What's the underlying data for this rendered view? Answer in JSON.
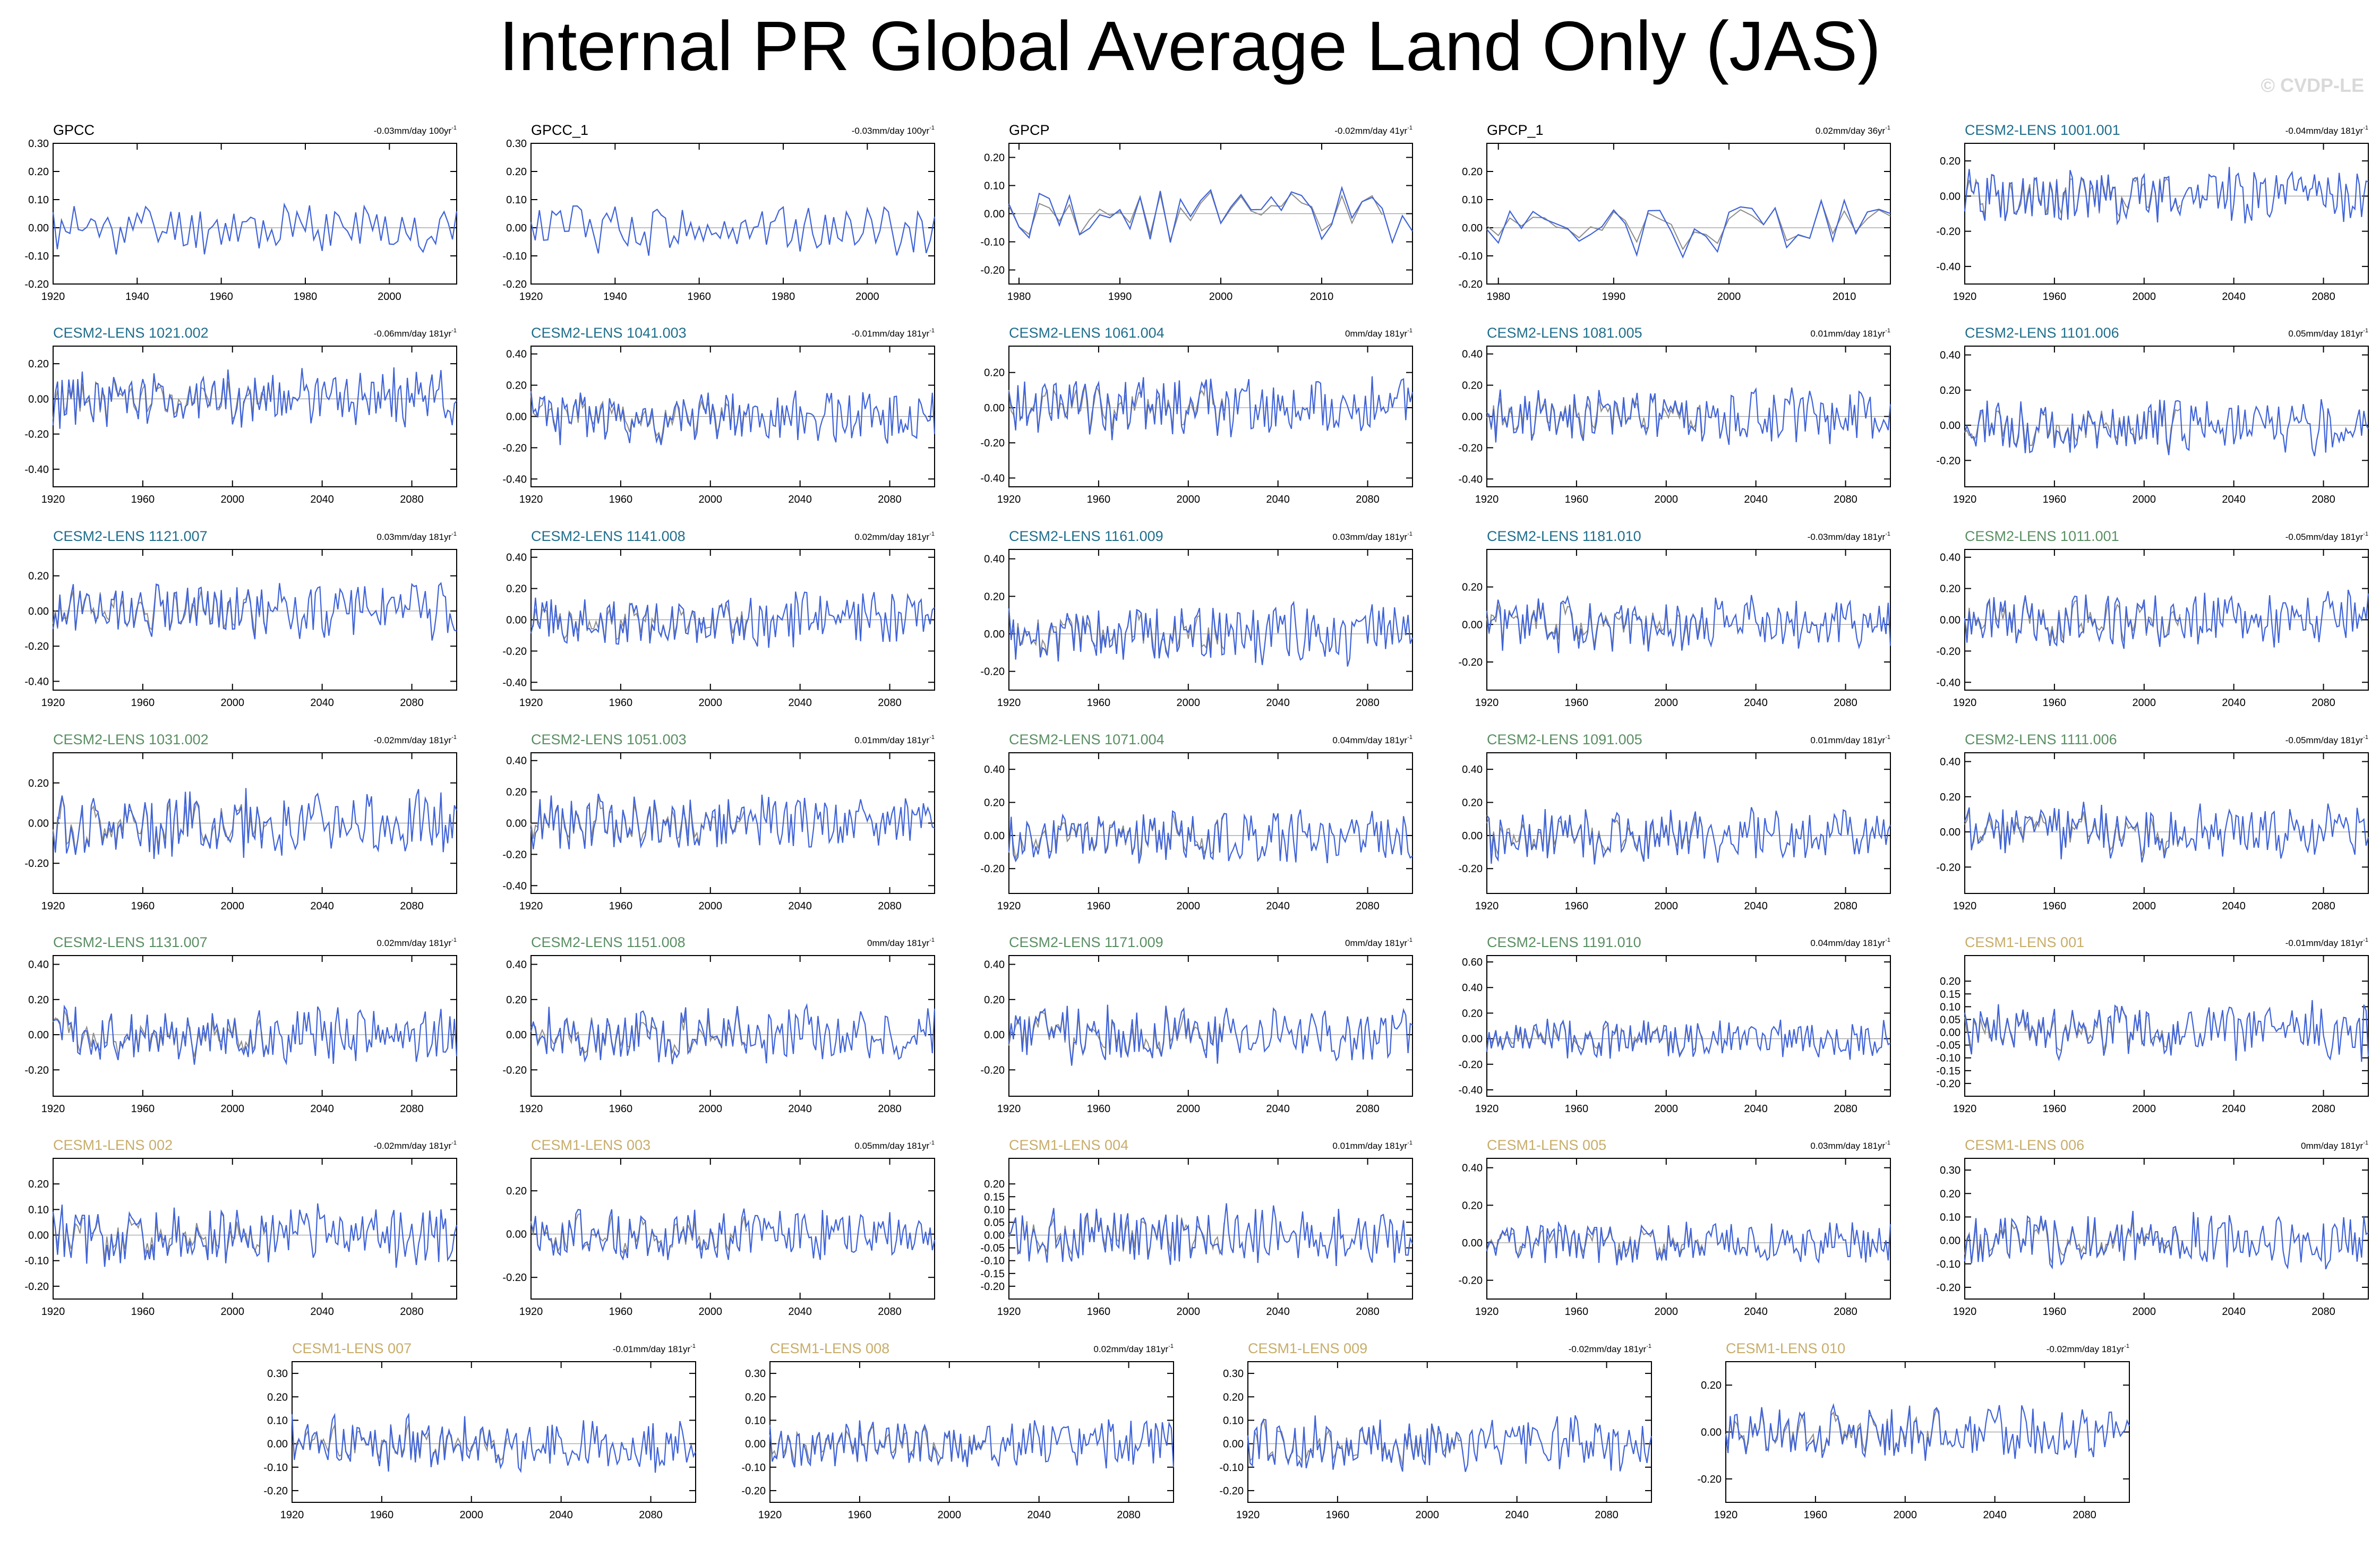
{
  "title": "Internal PR Global Average Land Only (JAS)",
  "watermark": "© CVDP-LE",
  "colors": {
    "model_line": "#3f63d8",
    "obs_line": "#8c8c8c",
    "zero_line": "#9a9a9a",
    "obs_label": "#000000",
    "cesm2_cmip6": "#1f6e8c",
    "cesm2_smbb": "#5a8f63",
    "cesm1": "#c8ad6a"
  },
  "chart_data": [
    {
      "type": "line",
      "name": "GPCC",
      "trend": "-0.03mm/day 100yr",
      "label_color": "obs",
      "xlim": [
        1920,
        2016
      ],
      "xticks": [
        1920,
        1940,
        1960,
        1980,
        2000
      ],
      "ylim": [
        -0.2,
        0.3
      ],
      "yticks": [
        "0.30",
        "0.20",
        "0.10",
        "0.00",
        "-0.10",
        "-0.20"
      ],
      "seed": 11,
      "amp": 0.08
    },
    {
      "type": "line",
      "name": "GPCC_1",
      "trend": "-0.03mm/day 100yr",
      "label_color": "obs",
      "xlim": [
        1920,
        2016
      ],
      "xticks": [
        1920,
        1940,
        1960,
        1980,
        2000
      ],
      "ylim": [
        -0.2,
        0.3
      ],
      "yticks": [
        "0.30",
        "0.20",
        "0.10",
        "0.00",
        "-0.10",
        "-0.20"
      ],
      "seed": 12,
      "amp": 0.08
    },
    {
      "type": "line",
      "name": "GPCP",
      "trend": "-0.02mm/day 41yr",
      "label_color": "obs",
      "xlim": [
        1979,
        2019
      ],
      "xticks": [
        1980,
        1990,
        2000,
        2010
      ],
      "ylim": [
        -0.25,
        0.25
      ],
      "yticks": [
        "0.20",
        "0.10",
        "0.00",
        "-0.10",
        "-0.20"
      ],
      "seed": 13,
      "amp": 0.09,
      "obs": true
    },
    {
      "type": "line",
      "name": "GPCP_1",
      "trend": "0.02mm/day 36yr",
      "label_color": "obs",
      "xlim": [
        1979,
        2014
      ],
      "xticks": [
        1980,
        1990,
        2000,
        2010
      ],
      "ylim": [
        -0.2,
        0.3
      ],
      "yticks": [
        "0.20",
        "0.10",
        "0.00",
        "-0.10",
        "-0.20"
      ],
      "seed": 14,
      "amp": 0.09,
      "obs": true
    },
    {
      "type": "line",
      "name": "CESM2-LENS 1001.001",
      "trend": "-0.04mm/day 181yr",
      "label_color": "cesm2_cmip6",
      "xlim": [
        1920,
        2100
      ],
      "xticks": [
        1920,
        1960,
        2000,
        2040,
        2080
      ],
      "ylim": [
        -0.5,
        0.3
      ],
      "yticks": [
        "0.20",
        "0.00",
        "-0.20",
        "-0.40"
      ],
      "seed": 21,
      "amp": 0.14,
      "obs": true
    },
    {
      "type": "line",
      "name": "CESM2-LENS 1021.002",
      "trend": "-0.06mm/day 181yr",
      "label_color": "cesm2_cmip6",
      "xlim": [
        1920,
        2100
      ],
      "xticks": [
        1920,
        1960,
        2000,
        2040,
        2080
      ],
      "ylim": [
        -0.5,
        0.3
      ],
      "yticks": [
        "0.20",
        "0.00",
        "-0.20",
        "-0.40"
      ],
      "seed": 22,
      "amp": 0.14,
      "obs": true
    },
    {
      "type": "line",
      "name": "CESM2-LENS 1041.003",
      "trend": "-0.01mm/day 181yr",
      "label_color": "cesm2_cmip6",
      "xlim": [
        1920,
        2100
      ],
      "xticks": [
        1920,
        1960,
        2000,
        2040,
        2080
      ],
      "ylim": [
        -0.45,
        0.45
      ],
      "yticks": [
        "0.40",
        "0.20",
        "0.00",
        "-0.20",
        "-0.40"
      ],
      "seed": 23,
      "amp": 0.15,
      "obs": true
    },
    {
      "type": "line",
      "name": "CESM2-LENS 1061.004",
      "trend": "0mm/day 181yr",
      "label_color": "cesm2_cmip6",
      "xlim": [
        1920,
        2100
      ],
      "xticks": [
        1920,
        1960,
        2000,
        2040,
        2080
      ],
      "ylim": [
        -0.45,
        0.35
      ],
      "yticks": [
        "0.20",
        "0.00",
        "-0.20",
        "-0.40"
      ],
      "seed": 24,
      "amp": 0.15,
      "obs": true
    },
    {
      "type": "line",
      "name": "CESM2-LENS 1081.005",
      "trend": "0.01mm/day 181yr",
      "label_color": "cesm2_cmip6",
      "xlim": [
        1920,
        2100
      ],
      "xticks": [
        1920,
        1960,
        2000,
        2040,
        2080
      ],
      "ylim": [
        -0.45,
        0.45
      ],
      "yticks": [
        "0.40",
        "0.20",
        "0.00",
        "-0.20",
        "-0.40"
      ],
      "seed": 25,
      "amp": 0.15,
      "obs": true
    },
    {
      "type": "line",
      "name": "CESM2-LENS 1101.006",
      "trend": "0.05mm/day 181yr",
      "label_color": "cesm2_cmip6",
      "xlim": [
        1920,
        2100
      ],
      "xticks": [
        1920,
        1960,
        2000,
        2040,
        2080
      ],
      "ylim": [
        -0.35,
        0.45
      ],
      "yticks": [
        "0.40",
        "0.20",
        "0.00",
        "-0.20"
      ],
      "seed": 26,
      "amp": 0.14,
      "obs": true
    },
    {
      "type": "line",
      "name": "CESM2-LENS 1121.007",
      "trend": "0.03mm/day 181yr",
      "label_color": "cesm2_cmip6",
      "xlim": [
        1920,
        2100
      ],
      "xticks": [
        1920,
        1960,
        2000,
        2040,
        2080
      ],
      "ylim": [
        -0.45,
        0.35
      ],
      "yticks": [
        "0.20",
        "0.00",
        "-0.20",
        "-0.40"
      ],
      "seed": 27,
      "amp": 0.14,
      "obs": true
    },
    {
      "type": "line",
      "name": "CESM2-LENS 1141.008",
      "trend": "0.02mm/day 181yr",
      "label_color": "cesm2_cmip6",
      "xlim": [
        1920,
        2100
      ],
      "xticks": [
        1920,
        1960,
        2000,
        2040,
        2080
      ],
      "ylim": [
        -0.45,
        0.45
      ],
      "yticks": [
        "0.40",
        "0.20",
        "0.00",
        "-0.20",
        "-0.40"
      ],
      "seed": 28,
      "amp": 0.15,
      "obs": true
    },
    {
      "type": "line",
      "name": "CESM2-LENS 1161.009",
      "trend": "0.03mm/day 181yr",
      "label_color": "cesm2_cmip6",
      "xlim": [
        1920,
        2100
      ],
      "xticks": [
        1920,
        1960,
        2000,
        2040,
        2080
      ],
      "ylim": [
        -0.3,
        0.45
      ],
      "yticks": [
        "0.40",
        "0.20",
        "0.00",
        "-0.20"
      ],
      "seed": 29,
      "amp": 0.14,
      "obs": true
    },
    {
      "type": "line",
      "name": "CESM2-LENS 1181.010",
      "trend": "-0.03mm/day 181yr",
      "label_color": "cesm2_cmip6",
      "xlim": [
        1920,
        2100
      ],
      "xticks": [
        1920,
        1960,
        2000,
        2040,
        2080
      ],
      "ylim": [
        -0.35,
        0.4
      ],
      "yticks": [
        "0.20",
        "0.00",
        "-0.20"
      ],
      "seed": 30,
      "amp": 0.14,
      "obs": true
    },
    {
      "type": "line",
      "name": "CESM2-LENS 1011.001",
      "trend": "-0.05mm/day 181yr",
      "label_color": "cesm2_smbb",
      "xlim": [
        1920,
        2100
      ],
      "xticks": [
        1920,
        1960,
        2000,
        2040,
        2080
      ],
      "ylim": [
        -0.45,
        0.45
      ],
      "yticks": [
        "0.40",
        "0.20",
        "0.00",
        "-0.20",
        "-0.40"
      ],
      "seed": 31,
      "amp": 0.15,
      "obs": true
    },
    {
      "type": "line",
      "name": "CESM2-LENS 1031.002",
      "trend": "-0.02mm/day 181yr",
      "label_color": "cesm2_smbb",
      "xlim": [
        1920,
        2100
      ],
      "xticks": [
        1920,
        1960,
        2000,
        2040,
        2080
      ],
      "ylim": [
        -0.35,
        0.35
      ],
      "yticks": [
        "0.20",
        "0.00",
        "-0.20"
      ],
      "seed": 32,
      "amp": 0.14,
      "obs": true
    },
    {
      "type": "line",
      "name": "CESM2-LENS 1051.003",
      "trend": "0.01mm/day 181yr",
      "label_color": "cesm2_smbb",
      "xlim": [
        1920,
        2100
      ],
      "xticks": [
        1920,
        1960,
        2000,
        2040,
        2080
      ],
      "ylim": [
        -0.45,
        0.45
      ],
      "yticks": [
        "0.40",
        "0.20",
        "0.00",
        "-0.20",
        "-0.40"
      ],
      "seed": 33,
      "amp": 0.15,
      "obs": true
    },
    {
      "type": "line",
      "name": "CESM2-LENS 1071.004",
      "trend": "0.04mm/day 181yr",
      "label_color": "cesm2_smbb",
      "xlim": [
        1920,
        2100
      ],
      "xticks": [
        1920,
        1960,
        2000,
        2040,
        2080
      ],
      "ylim": [
        -0.35,
        0.5
      ],
      "yticks": [
        "0.40",
        "0.20",
        "0.00",
        "-0.20"
      ],
      "seed": 34,
      "amp": 0.14,
      "obs": true
    },
    {
      "type": "line",
      "name": "CESM2-LENS 1091.005",
      "trend": "0.01mm/day 181yr",
      "label_color": "cesm2_smbb",
      "xlim": [
        1920,
        2100
      ],
      "xticks": [
        1920,
        1960,
        2000,
        2040,
        2080
      ],
      "ylim": [
        -0.35,
        0.5
      ],
      "yticks": [
        "0.40",
        "0.20",
        "0.00",
        "-0.20"
      ],
      "seed": 35,
      "amp": 0.14,
      "obs": true
    },
    {
      "type": "line",
      "name": "CESM2-LENS 1111.006",
      "trend": "-0.05mm/day 181yr",
      "label_color": "cesm2_smbb",
      "xlim": [
        1920,
        2100
      ],
      "xticks": [
        1920,
        1960,
        2000,
        2040,
        2080
      ],
      "ylim": [
        -0.35,
        0.45
      ],
      "yticks": [
        "0.40",
        "0.20",
        "0.00",
        "-0.20"
      ],
      "seed": 36,
      "amp": 0.14,
      "obs": true
    },
    {
      "type": "line",
      "name": "CESM2-LENS 1131.007",
      "trend": "0.02mm/day 181yr",
      "label_color": "cesm2_smbb",
      "xlim": [
        1920,
        2100
      ],
      "xticks": [
        1920,
        1960,
        2000,
        2040,
        2080
      ],
      "ylim": [
        -0.35,
        0.45
      ],
      "yticks": [
        "0.40",
        "0.20",
        "0.00",
        "-0.20"
      ],
      "seed": 37,
      "amp": 0.14,
      "obs": true
    },
    {
      "type": "line",
      "name": "CESM2-LENS 1151.008",
      "trend": "0mm/day 181yr",
      "label_color": "cesm2_smbb",
      "xlim": [
        1920,
        2100
      ],
      "xticks": [
        1920,
        1960,
        2000,
        2040,
        2080
      ],
      "ylim": [
        -0.35,
        0.45
      ],
      "yticks": [
        "0.40",
        "0.20",
        "0.00",
        "-0.20"
      ],
      "seed": 38,
      "amp": 0.14,
      "obs": true
    },
    {
      "type": "line",
      "name": "CESM2-LENS 1171.009",
      "trend": "0mm/day 181yr",
      "label_color": "cesm2_smbb",
      "xlim": [
        1920,
        2100
      ],
      "xticks": [
        1920,
        1960,
        2000,
        2040,
        2080
      ],
      "ylim": [
        -0.35,
        0.45
      ],
      "yticks": [
        "0.40",
        "0.20",
        "0.00",
        "-0.20"
      ],
      "seed": 39,
      "amp": 0.14,
      "obs": true
    },
    {
      "type": "line",
      "name": "CESM2-LENS 1191.010",
      "trend": "0.04mm/day 181yr",
      "label_color": "cesm2_smbb",
      "xlim": [
        1920,
        2100
      ],
      "xticks": [
        1920,
        1960,
        2000,
        2040,
        2080
      ],
      "ylim": [
        -0.45,
        0.65
      ],
      "yticks": [
        "0.60",
        "0.40",
        "0.20",
        "0.00",
        "-0.20",
        "-0.40"
      ],
      "seed": 40,
      "amp": 0.13,
      "obs": true
    },
    {
      "type": "line",
      "name": "CESM1-LENS 001",
      "trend": "-0.01mm/day 181yr",
      "label_color": "cesm1",
      "xlim": [
        1920,
        2100
      ],
      "xticks": [
        1920,
        1960,
        2000,
        2040,
        2080
      ],
      "ylim": [
        -0.25,
        0.3
      ],
      "yticks": [
        "0.20",
        "0.15",
        "0.10",
        "0.05",
        "0.00",
        "-0.05",
        "-0.10",
        "-0.15",
        "-0.20"
      ],
      "seed": 41,
      "amp": 0.1,
      "obs": true
    },
    {
      "type": "line",
      "name": "CESM1-LENS 002",
      "trend": "-0.02mm/day 181yr",
      "label_color": "cesm1",
      "xlim": [
        1920,
        2100
      ],
      "xticks": [
        1920,
        1960,
        2000,
        2040,
        2080
      ],
      "ylim": [
        -0.25,
        0.3
      ],
      "yticks": [
        "0.20",
        "0.10",
        "0.00",
        "-0.10",
        "-0.20"
      ],
      "seed": 42,
      "amp": 0.1,
      "obs": true
    },
    {
      "type": "line",
      "name": "CESM1-LENS 003",
      "trend": "0.05mm/day 181yr",
      "label_color": "cesm1",
      "xlim": [
        1920,
        2100
      ],
      "xticks": [
        1920,
        1960,
        2000,
        2040,
        2080
      ],
      "ylim": [
        -0.3,
        0.35
      ],
      "yticks": [
        "0.20",
        "0.00",
        "-0.20"
      ],
      "seed": 43,
      "amp": 0.1,
      "obs": true
    },
    {
      "type": "line",
      "name": "CESM1-LENS 004",
      "trend": "0.01mm/day 181yr",
      "label_color": "cesm1",
      "xlim": [
        1920,
        2100
      ],
      "xticks": [
        1920,
        1960,
        2000,
        2040,
        2080
      ],
      "ylim": [
        -0.25,
        0.3
      ],
      "yticks": [
        "0.20",
        "0.15",
        "0.10",
        "0.05",
        "0.00",
        "-0.05",
        "-0.10",
        "-0.15",
        "-0.20"
      ],
      "seed": 44,
      "amp": 0.1,
      "obs": true
    },
    {
      "type": "line",
      "name": "CESM1-LENS 005",
      "trend": "0.03mm/day 181yr",
      "label_color": "cesm1",
      "xlim": [
        1920,
        2100
      ],
      "xticks": [
        1920,
        1960,
        2000,
        2040,
        2080
      ],
      "ylim": [
        -0.3,
        0.45
      ],
      "yticks": [
        "0.40",
        "0.20",
        "0.00",
        "-0.20"
      ],
      "seed": 45,
      "amp": 0.1,
      "obs": true
    },
    {
      "type": "line",
      "name": "CESM1-LENS 006",
      "trend": "0mm/day 181yr",
      "label_color": "cesm1",
      "xlim": [
        1920,
        2100
      ],
      "xticks": [
        1920,
        1960,
        2000,
        2040,
        2080
      ],
      "ylim": [
        -0.25,
        0.35
      ],
      "yticks": [
        "0.30",
        "0.20",
        "0.10",
        "0.00",
        "-0.10",
        "-0.20"
      ],
      "seed": 46,
      "amp": 0.1,
      "obs": true
    },
    {
      "type": "line",
      "name": "CESM1-LENS 007",
      "trend": "-0.01mm/day 181yr",
      "label_color": "cesm1",
      "xlim": [
        1920,
        2100
      ],
      "xticks": [
        1920,
        1960,
        2000,
        2040,
        2080
      ],
      "ylim": [
        -0.25,
        0.35
      ],
      "yticks": [
        "0.30",
        "0.20",
        "0.10",
        "0.00",
        "-0.10",
        "-0.20"
      ],
      "seed": 47,
      "amp": 0.1,
      "obs": true
    },
    {
      "type": "line",
      "name": "CESM1-LENS 008",
      "trend": "0.02mm/day 181yr",
      "label_color": "cesm1",
      "xlim": [
        1920,
        2100
      ],
      "xticks": [
        1920,
        1960,
        2000,
        2040,
        2080
      ],
      "ylim": [
        -0.25,
        0.35
      ],
      "yticks": [
        "0.30",
        "0.20",
        "0.10",
        "0.00",
        "-0.10",
        "-0.20"
      ],
      "seed": 48,
      "amp": 0.1,
      "obs": true
    },
    {
      "type": "line",
      "name": "CESM1-LENS 009",
      "trend": "-0.02mm/day 181yr",
      "label_color": "cesm1",
      "xlim": [
        1920,
        2100
      ],
      "xticks": [
        1920,
        1960,
        2000,
        2040,
        2080
      ],
      "ylim": [
        -0.25,
        0.35
      ],
      "yticks": [
        "0.30",
        "0.20",
        "0.10",
        "0.00",
        "-0.10",
        "-0.20"
      ],
      "seed": 49,
      "amp": 0.1,
      "obs": true
    },
    {
      "type": "line",
      "name": "CESM1-LENS 010",
      "trend": "-0.02mm/day 181yr",
      "label_color": "cesm1",
      "xlim": [
        1920,
        2100
      ],
      "xticks": [
        1920,
        1960,
        2000,
        2040,
        2080
      ],
      "ylim": [
        -0.3,
        0.3
      ],
      "yticks": [
        "0.20",
        "0.00",
        "-0.20"
      ],
      "seed": 50,
      "amp": 0.1,
      "obs": true
    }
  ]
}
